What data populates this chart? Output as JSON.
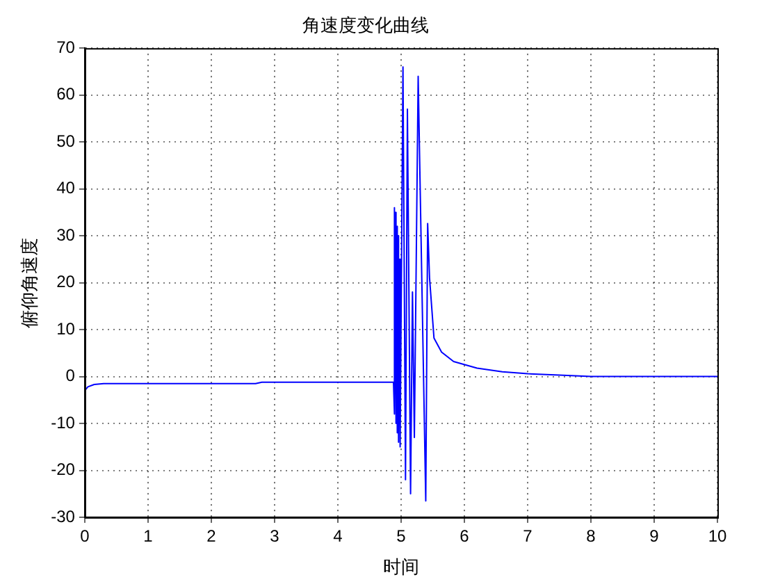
{
  "chart_data": {
    "type": "line",
    "title": "角速度变化曲线",
    "xlabel": "时间",
    "ylabel": "俯仰角速度",
    "x": [
      0,
      0.05,
      0.15,
      0.3,
      1,
      2,
      2.7,
      2.8,
      3.5,
      4.5,
      4.88,
      4.89,
      4.9,
      4.91,
      4.92,
      4.93,
      4.94,
      4.95,
      4.96,
      4.97,
      4.985,
      5.03,
      5.07,
      5.1,
      5.15,
      5.18,
      5.21,
      5.27,
      5.39,
      5.42,
      5.45,
      5.52,
      5.64,
      5.83,
      6.2,
      6.6,
      7,
      7.5,
      8,
      9,
      10
    ],
    "series": [
      {
        "color": "#0000ff",
        "values": [
          -3,
          -2.2,
          -1.7,
          -1.5,
          -1.5,
          -1.5,
          -1.5,
          -1.2,
          -1.2,
          -1.2,
          -1.2,
          36,
          -8,
          35,
          -10,
          32,
          -12,
          30,
          -14,
          25,
          -15,
          66,
          -22,
          57,
          -25,
          18,
          -13,
          64,
          -26.5,
          32.6,
          21,
          8.2,
          5.2,
          3.2,
          1.8,
          1,
          0.6,
          0.3,
          0,
          0,
          0
        ]
      }
    ],
    "xlim": [
      0,
      10
    ],
    "xticks": [
      0,
      1,
      2,
      3,
      4,
      5,
      6,
      7,
      8,
      9,
      10
    ],
    "ylim": [
      -30,
      70
    ],
    "yticks": [
      -30,
      -20,
      -10,
      0,
      10,
      20,
      30,
      40,
      50,
      60,
      70
    ],
    "grid": true,
    "legend": false,
    "marker": "none",
    "line_style": "solid"
  }
}
